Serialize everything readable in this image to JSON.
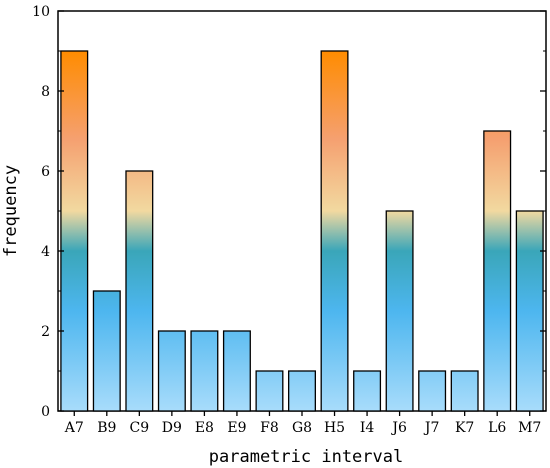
{
  "chart_data": {
    "type": "bar",
    "title": "",
    "xlabel": "parametric interval",
    "ylabel": "frequency",
    "categories": [
      "A7",
      "B9",
      "C9",
      "D9",
      "E8",
      "E9",
      "F8",
      "G8",
      "H5",
      "I4",
      "J6",
      "J7",
      "K7",
      "L6",
      "M7"
    ],
    "values": [
      9,
      3,
      6,
      2,
      2,
      2,
      1,
      1,
      9,
      1,
      5,
      1,
      1,
      7,
      5
    ],
    "ylim": [
      0,
      10
    ],
    "yticks": [
      0,
      2,
      4,
      6,
      8,
      10
    ],
    "grid": false,
    "legend": "none",
    "colors": {
      "top": "#ff8c00",
      "upper": "#f5a070",
      "mid": "#f2d9a0",
      "teal": "#3aa6b9",
      "blue": "#4db6ef",
      "bottom": "#a8dcfb",
      "edge": "#000000"
    }
  }
}
